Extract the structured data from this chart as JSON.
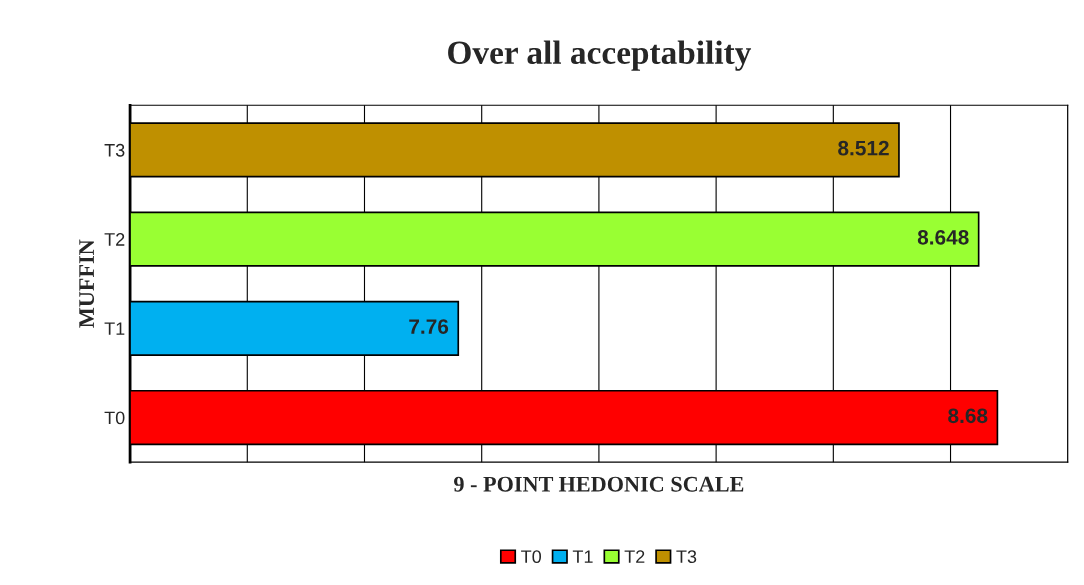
{
  "chart_data": {
    "type": "bar",
    "orientation": "horizontal",
    "title": "Over all acceptability",
    "xlabel": "9 - POINT HEDONIC SCALE",
    "ylabel": "MUFFIN",
    "categories": [
      "T3",
      "T2",
      "T1",
      "T0"
    ],
    "series": [
      {
        "name": "T0",
        "color": "#ff0000",
        "values": [
          null,
          null,
          null,
          8.68
        ]
      },
      {
        "name": "T1",
        "color": "#00b0f0",
        "values": [
          null,
          null,
          7.76,
          null
        ]
      },
      {
        "name": "T2",
        "color": "#99ff33",
        "values": [
          null,
          8.648,
          null,
          null
        ]
      },
      {
        "name": "T3",
        "color": "#bf9000",
        "values": [
          8.512,
          null,
          null,
          null
        ]
      }
    ],
    "xlim": [
      7.2,
      8.8
    ],
    "xticks": [
      7.2,
      7.4,
      7.6,
      7.8,
      8.0,
      8.2,
      8.4,
      8.6,
      8.8
    ],
    "tick_labels": "y",
    "grid": "x",
    "data_labels": true,
    "legend": "bottom"
  }
}
